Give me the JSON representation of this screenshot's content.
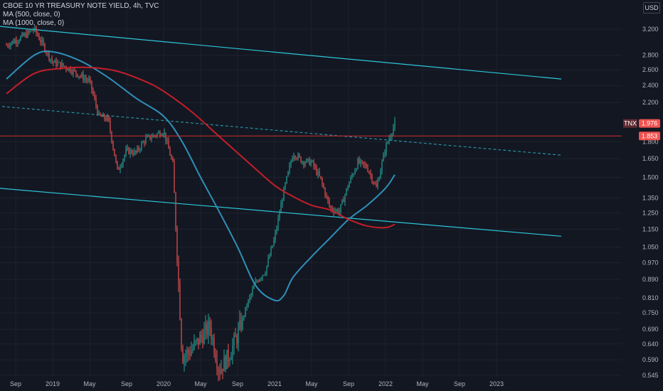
{
  "header": {
    "symbol_title": "CBOE 10 YR TREASURY NOTE YIELD, 4h, TVC",
    "ma1_label": "MA (500, close, 0)",
    "ma2_label": "MA (1000, close, 0)",
    "currency": "USD"
  },
  "colors": {
    "background": "#131722",
    "grid": "#1e222d",
    "candle_up": "#26a69a",
    "candle_down": "#ef5350",
    "ma500": "#2f8fb8",
    "ma1000": "#c21f2a",
    "channel": "#2cc6d9",
    "hline": "#d32f2f",
    "tnx_tag": "#ef5350"
  },
  "chart_data": {
    "type": "line",
    "title": "CBOE 10 YR TREASURY NOTE YIELD, 4h, TVC",
    "scale": "log",
    "grid": true,
    "ylim": [
      0.53,
      4.05
    ],
    "y_ticks": [
      "3.200",
      "2.800",
      "2.600",
      "2.400",
      "2.200",
      "1.976",
      "1.853",
      "1.800",
      "1.650",
      "1.500",
      "1.350",
      "1.250",
      "1.150",
      "1.050",
      "0.970",
      "0.890",
      "0.810",
      "0.750",
      "0.690",
      "0.640",
      "0.590",
      "0.545"
    ],
    "x_ticks": [
      "Sep",
      "2019",
      "May",
      "Sep",
      "2020",
      "May",
      "Sep",
      "2021",
      "May",
      "Sep",
      "2022",
      "May",
      "Sep",
      "2023"
    ],
    "x_tick_dates": [
      "2018-09",
      "2019-01",
      "2019-05",
      "2019-09",
      "2020-01",
      "2020-05",
      "2020-09",
      "2021-01",
      "2021-05",
      "2021-09",
      "2022-01",
      "2022-05",
      "2022-09",
      "2023-01"
    ],
    "price_series": {
      "name": "TNX",
      "x": [
        "2018-08",
        "2018-10",
        "2018-11",
        "2019-01",
        "2019-02",
        "2019-03",
        "2019-04",
        "2019-05",
        "2019-06",
        "2019-07",
        "2019-08",
        "2019-09",
        "2019-10",
        "2019-11",
        "2019-12",
        "2020-01",
        "2020-02",
        "2020-03",
        "2020-04",
        "2020-05",
        "2020-06",
        "2020-07",
        "2020-08",
        "2020-09",
        "2020-10",
        "2020-11",
        "2020-12",
        "2021-01",
        "2021-02",
        "2021-03",
        "2021-04",
        "2021-05",
        "2021-06",
        "2021-07",
        "2021-08",
        "2021-09",
        "2021-10",
        "2021-11",
        "2021-12",
        "2022-01",
        "2022-02"
      ],
      "y": [
        2.95,
        3.1,
        3.2,
        2.7,
        2.66,
        2.6,
        2.52,
        2.45,
        2.05,
        2.02,
        1.55,
        1.72,
        1.7,
        1.82,
        1.86,
        1.9,
        1.6,
        0.6,
        0.62,
        0.66,
        0.7,
        0.56,
        0.6,
        0.67,
        0.78,
        0.88,
        0.93,
        1.1,
        1.4,
        1.7,
        1.63,
        1.62,
        1.48,
        1.28,
        1.26,
        1.45,
        1.62,
        1.58,
        1.42,
        1.75,
        1.976
      ]
    },
    "series": [
      {
        "name": "MA (500, close, 0)",
        "x": [
          "2018-08",
          "2018-11",
          "2019-01",
          "2019-04",
          "2019-07",
          "2019-10",
          "2020-01",
          "2020-03",
          "2020-05",
          "2020-07",
          "2020-09",
          "2020-11",
          "2021-01",
          "2021-02",
          "2021-03",
          "2021-05",
          "2021-07",
          "2021-09",
          "2021-11",
          "2022-01",
          "2022-02"
        ],
        "y": [
          2.48,
          2.8,
          2.85,
          2.72,
          2.5,
          2.25,
          2.05,
          1.8,
          1.5,
          1.26,
          1.05,
          0.86,
          0.8,
          0.82,
          0.9,
          1.0,
          1.1,
          1.21,
          1.3,
          1.42,
          1.52
        ]
      },
      {
        "name": "MA (1000, close, 0)",
        "x": [
          "2018-08",
          "2018-11",
          "2019-02",
          "2019-05",
          "2019-08",
          "2019-11",
          "2020-01",
          "2020-04",
          "2020-07",
          "2020-10",
          "2021-01",
          "2021-03",
          "2021-05",
          "2021-07",
          "2021-09",
          "2021-11",
          "2022-01",
          "2022-02"
        ],
        "y": [
          2.3,
          2.55,
          2.62,
          2.63,
          2.58,
          2.45,
          2.33,
          2.1,
          1.85,
          1.63,
          1.44,
          1.36,
          1.3,
          1.27,
          1.21,
          1.17,
          1.16,
          1.18
        ]
      }
    ],
    "channel_upper": {
      "x": [
        "2018-07",
        "2023-08"
      ],
      "y": [
        3.25,
        2.48
      ]
    },
    "channel_lower": {
      "x": [
        "2018-07",
        "2023-08"
      ],
      "y": [
        1.42,
        1.11
      ]
    },
    "dashed_trend": {
      "x": [
        "2018-07",
        "2023-08"
      ],
      "y": [
        2.16,
        1.68
      ]
    },
    "horizontal_level": 1.853,
    "price_tags": [
      {
        "label": "TNX",
        "value": "1.976"
      },
      {
        "label": "",
        "value": "1.853"
      }
    ]
  }
}
